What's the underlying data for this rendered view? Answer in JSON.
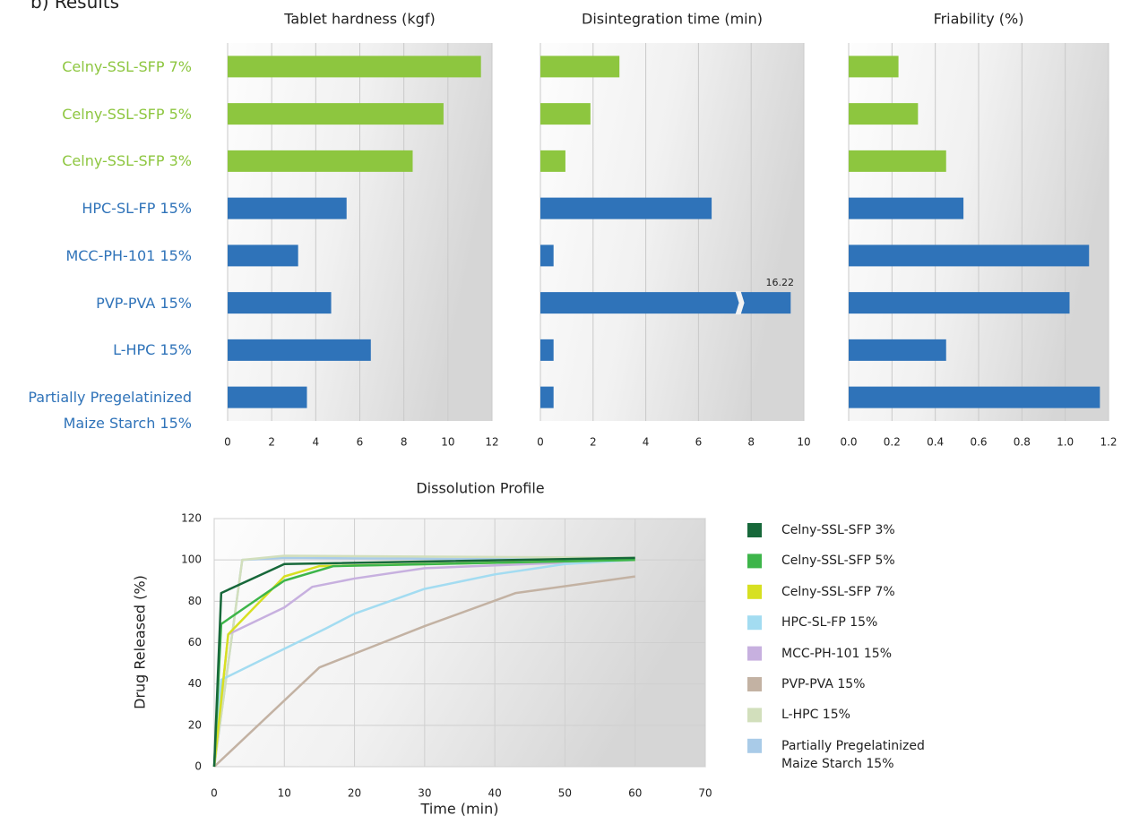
{
  "panel_label": "b)  Results",
  "chart_data": [
    {
      "type": "bar",
      "title": "Tablet hardness (kgf)",
      "categories": [
        "Celny-SSL-SFP 7%",
        "Celny-SSL-SFP 5%",
        "Celny-SSL-SFP 3%",
        "HPC-SL-FP 15%",
        "MCC-PH-101 15%",
        "PVP-PVA 15%",
        "L-HPC 15%",
        "Partially Pregelatinized\nMaize Starch 15%"
      ],
      "values": [
        11.5,
        9.8,
        8.4,
        5.4,
        3.2,
        4.7,
        6.5,
        3.6
      ],
      "colors": [
        "#8dc63f",
        "#8dc63f",
        "#8dc63f",
        "#2f73b9",
        "#2f73b9",
        "#2f73b9",
        "#2f73b9",
        "#2f73b9"
      ],
      "xlim": [
        0,
        12
      ],
      "xticks": [
        0,
        2,
        4,
        6,
        8,
        10,
        12
      ],
      "grid": true
    },
    {
      "type": "bar",
      "title": "Disintegration time (min)",
      "values": [
        3,
        1.9,
        0.95,
        6.5,
        0.5,
        16.22,
        0.5,
        0.5
      ],
      "colors": [
        "#8dc63f",
        "#8dc63f",
        "#8dc63f",
        "#2f73b9",
        "#2f73b9",
        "#2f73b9",
        "#2f73b9",
        "#2f73b9"
      ],
      "xlim": [
        0,
        10
      ],
      "xticks": [
        0,
        2,
        4,
        6,
        8,
        10
      ],
      "grid": true
    },
    {
      "type": "bar",
      "title": "Friability (%)",
      "values": [
        0.23,
        0.32,
        0.45,
        0.53,
        1.11,
        1.02,
        0.45,
        1.16
      ],
      "colors": [
        "#8dc63f",
        "#8dc63f",
        "#8dc63f",
        "#2f73b9",
        "#2f73b9",
        "#2f73b9",
        "#2f73b9",
        "#2f73b9"
      ],
      "xlim": [
        0,
        1.2
      ],
      "xticks": [
        {
          "value": 0,
          "label": "0.0"
        },
        0.2,
        0.4,
        0.6,
        0.8,
        {
          "value": 1,
          "label": "1.0"
        },
        1.2
      ],
      "grid": true
    },
    {
      "type": "line",
      "title": "Dissolution Profile",
      "xlabel": "Time (min)",
      "ylabel": "Drug Released (%)",
      "xlim": [
        0,
        70
      ],
      "xticks": [
        0,
        10,
        20,
        30,
        40,
        50,
        60,
        70
      ],
      "ylim": [
        0,
        120
      ],
      "yticks": [
        0,
        20,
        40,
        60,
        80,
        100,
        120
      ],
      "grid": true,
      "series": [
        {
          "name": "Celny-SSL-SFP 3%",
          "color": "#17683a",
          "x": [
            0,
            1,
            10,
            60
          ],
          "values": [
            0,
            84,
            98,
            101
          ]
        },
        {
          "name": "Celny-SSL-SFP 5%",
          "color": "#3db54a",
          "x": [
            0,
            1,
            10,
            17,
            60
          ],
          "values": [
            0,
            69,
            90,
            97,
            100
          ]
        },
        {
          "name": "Celny-SSL-SFP 7%",
          "color": "#d7e021",
          "x": [
            0,
            2,
            10,
            15,
            60
          ],
          "values": [
            0,
            64,
            92,
            97,
            100
          ]
        },
        {
          "name": "HPC-SL-FP 15%",
          "color": "#a3dcf1",
          "x": [
            0,
            1,
            10,
            16,
            20,
            30,
            40,
            50,
            60
          ],
          "values": [
            0,
            42,
            57,
            67,
            74,
            86,
            93,
            98,
            100
          ]
        },
        {
          "name": "MCC-PH-101 15%",
          "color": "#c7b0df",
          "x": [
            0,
            2,
            10,
            14,
            20,
            30,
            60
          ],
          "values": [
            0,
            64,
            77,
            87,
            91,
            96,
            100
          ]
        },
        {
          "name": "PVP-PVA 15%",
          "color": "#c3b2a3",
          "x": [
            0,
            15,
            30,
            43,
            60
          ],
          "values": [
            0,
            48,
            68,
            84,
            92
          ]
        },
        {
          "name": "L-HPC 15%",
          "color": "#d2dfbc",
          "x": [
            0,
            4,
            10,
            60
          ],
          "values": [
            0,
            100,
            102,
            101
          ]
        },
        {
          "name": "Partially Pregelatinized\nMaize Starch 15%",
          "color": "#a9cbe8",
          "x": [
            0,
            4,
            10,
            60
          ],
          "values": [
            0,
            100,
            101,
            100
          ]
        }
      ]
    }
  ]
}
